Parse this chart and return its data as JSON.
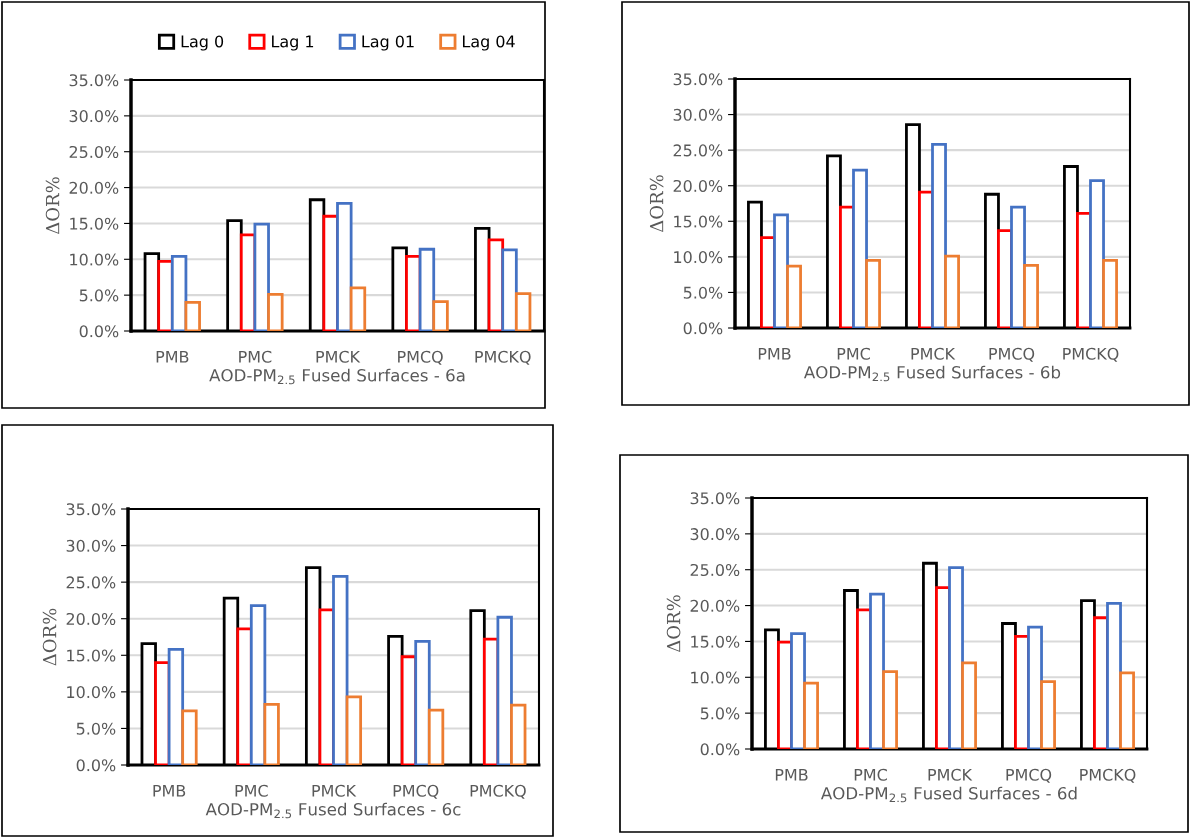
{
  "chart_data": [
    {
      "type": "bar",
      "xlabel": "AOD-PM$_{2.5}$ Fused Surfaces - 6a",
      "ylabel": "ΔOR%",
      "categories": [
        "PMB",
        "PMC",
        "PMCK",
        "PMCQ",
        "PMCKQ"
      ],
      "ylim": [
        0,
        35
      ],
      "yticks": [
        {
          "value": 0,
          "label": "0.0%"
        },
        {
          "value": 5,
          "label": "5.0%"
        },
        {
          "value": 10,
          "label": "10.0%"
        },
        {
          "value": 15,
          "label": "15.0%"
        },
        {
          "value": 20,
          "label": "20.0%"
        },
        {
          "value": 25,
          "label": "25.0%"
        },
        {
          "value": 30,
          "label": "30.0%"
        },
        {
          "value": 35,
          "label": "35.0%"
        }
      ],
      "grid": "y",
      "legend": "top",
      "series": [
        {
          "name": "Lag 0",
          "color": "#000000",
          "values": [
            10.8,
            15.4,
            18.3,
            11.6,
            14.3
          ]
        },
        {
          "name": "Lag 1",
          "color": "#ff0000",
          "values": [
            9.7,
            13.4,
            16.0,
            10.4,
            12.7
          ]
        },
        {
          "name": "Lag 01",
          "color": "#4472c4",
          "values": [
            10.4,
            14.9,
            17.8,
            11.4,
            11.3
          ]
        },
        {
          "name": "Lag 04",
          "color": "#ed7d31",
          "values": [
            4.0,
            5.1,
            6.0,
            4.1,
            5.2
          ]
        }
      ]
    },
    {
      "type": "bar",
      "xlabel": "AOD-PM$_{2.5}$ Fused Surfaces - 6b",
      "ylabel": "ΔOR%",
      "categories": [
        "PMB",
        "PMC",
        "PMCK",
        "PMCQ",
        "PMCKQ"
      ],
      "ylim": [
        0,
        35
      ],
      "yticks": [
        {
          "value": 0,
          "label": "0.0%"
        },
        {
          "value": 5,
          "label": "5.0%"
        },
        {
          "value": 10,
          "label": "10.0%"
        },
        {
          "value": 15,
          "label": "15.0%"
        },
        {
          "value": 20,
          "label": "20.0%"
        },
        {
          "value": 25,
          "label": "25.0%"
        },
        {
          "value": 30,
          "label": "30.0%"
        },
        {
          "value": 35,
          "label": "35.0%"
        }
      ],
      "grid": "y",
      "series": [
        {
          "color": "#000000",
          "values": [
            17.7,
            24.2,
            28.6,
            18.8,
            22.7
          ]
        },
        {
          "color": "#ff0000",
          "values": [
            12.7,
            17.0,
            19.1,
            13.7,
            16.1
          ]
        },
        {
          "color": "#4472c4",
          "values": [
            15.9,
            22.2,
            25.8,
            17.0,
            20.7
          ]
        },
        {
          "color": "#ed7d31",
          "values": [
            8.7,
            9.5,
            10.1,
            8.8,
            9.5
          ]
        }
      ]
    },
    {
      "type": "bar",
      "xlabel": "AOD-PM$_{2.5}$ Fused Surfaces - 6c",
      "ylabel": "ΔOR%",
      "categories": [
        "PMB",
        "PMC",
        "PMCK",
        "PMCQ",
        "PMCKQ"
      ],
      "ylim": [
        0,
        35
      ],
      "yticks": [
        {
          "value": 0,
          "label": "0.0%"
        },
        {
          "value": 5,
          "label": "5.0%"
        },
        {
          "value": 10,
          "label": "10.0%"
        },
        {
          "value": 15,
          "label": "15.0%"
        },
        {
          "value": 20,
          "label": "20.0%"
        },
        {
          "value": 25,
          "label": "25.0%"
        },
        {
          "value": 30,
          "label": "30.0%"
        },
        {
          "value": 35,
          "label": "35.0%"
        }
      ],
      "grid": "y",
      "series": [
        {
          "color": "#000000",
          "values": [
            16.6,
            22.8,
            27.0,
            17.6,
            21.1
          ]
        },
        {
          "color": "#ff0000",
          "values": [
            14.0,
            18.6,
            21.2,
            14.8,
            17.2
          ]
        },
        {
          "color": "#4472c4",
          "values": [
            15.8,
            21.8,
            25.8,
            16.9,
            20.2
          ]
        },
        {
          "color": "#ed7d31",
          "values": [
            7.4,
            8.3,
            9.3,
            7.5,
            8.2
          ]
        }
      ]
    },
    {
      "type": "bar",
      "xlabel": "AOD-PM$_{2.5}$ Fused Surfaces - 6d",
      "ylabel": "ΔOR%",
      "categories": [
        "PMB",
        "PMC",
        "PMCK",
        "PMCQ",
        "PMCKQ"
      ],
      "ylim": [
        0,
        35
      ],
      "yticks": [
        {
          "value": 0,
          "label": "0.0%"
        },
        {
          "value": 5,
          "label": "5.0%"
        },
        {
          "value": 10,
          "label": "10.0%"
        },
        {
          "value": 15,
          "label": "15.0%"
        },
        {
          "value": 20,
          "label": "20.0%"
        },
        {
          "value": 25,
          "label": "25.0%"
        },
        {
          "value": 30,
          "label": "30.0%"
        },
        {
          "value": 35,
          "label": "35.0%"
        }
      ],
      "grid": "y",
      "series": [
        {
          "color": "#000000",
          "values": [
            16.6,
            22.1,
            25.9,
            17.5,
            20.7
          ]
        },
        {
          "color": "#ff0000",
          "values": [
            14.9,
            19.4,
            22.5,
            15.7,
            18.3
          ]
        },
        {
          "color": "#4472c4",
          "values": [
            16.1,
            21.6,
            25.3,
            17.0,
            20.3
          ]
        },
        {
          "color": "#ed7d31",
          "values": [
            9.2,
            10.8,
            12.0,
            9.4,
            10.6
          ]
        }
      ]
    }
  ]
}
